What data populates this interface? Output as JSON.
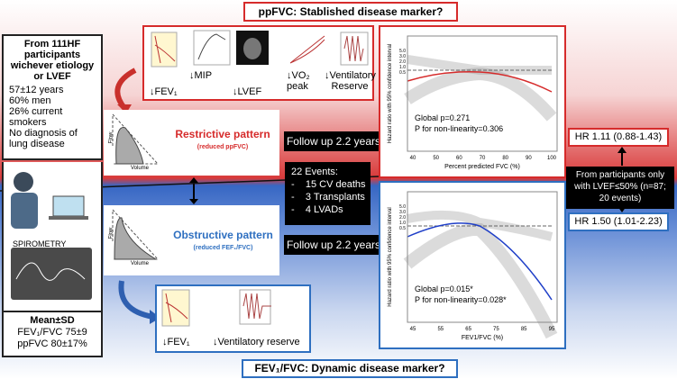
{
  "header": {
    "title": "ppFVC: Stablished disease marker?"
  },
  "footer": {
    "title": "FEV₁/FVC: Dynamic disease marker?"
  },
  "cohort": {
    "title": "From 111HF participants wichever etiology or LVEF",
    "items": [
      "57±12 years",
      "60% men",
      "26% current smokers",
      "No diagnosis of lung disease"
    ]
  },
  "spirometry_label": "SPIROMETRY",
  "summary": {
    "title": "Mean±SD",
    "items": [
      "FEV₁/FVC 75±9",
      "ppFVC 80±17%"
    ]
  },
  "top_findings": [
    "↓FEV₁",
    "↓MIP",
    "↓LVEF",
    "↓VO₂ peak",
    "↓Ventilatory Reserve"
  ],
  "bottom_findings": [
    "↓FEV₁",
    "↓Ventilatory reserve"
  ],
  "restrictive": {
    "title": "Restrictive pattern",
    "subtitle": "(reduced ppFVC)",
    "flow": "Flow",
    "volume": "Volume"
  },
  "obstructive": {
    "title": "Obstructive pattern",
    "subtitle": "(reduced FEF₁/FVC)",
    "flow": "Flow",
    "volume": "Volume"
  },
  "follow_up": [
    "Follow up 2.2 years",
    "Follow up 2.2 years"
  ],
  "events": {
    "title": "22 Events:",
    "items": [
      "-    15 CV deaths",
      "-    3 Transplants",
      "-    4 LVADs"
    ]
  },
  "top_plot": {
    "ylabel": "Hazard ratio with 95% confidence interval",
    "xlabel": "Percent predicted FVC (%)",
    "xticks": [
      "40",
      "50",
      "60",
      "70",
      "80",
      "90",
      "100"
    ],
    "yticks": [
      "5.0",
      "3.0",
      "2.0",
      "1.0",
      "0.5"
    ],
    "stats": [
      "Global p=0.271",
      "P for non-linearity=0.306"
    ]
  },
  "bottom_plot": {
    "ylabel": "Hazard ratio with 95% confidence interval",
    "xlabel": "FEV1/FVC (%)",
    "xticks": [
      "45",
      "55",
      "65",
      "75",
      "85",
      "95"
    ],
    "yticks": [
      "5.0",
      "3.0",
      "2.0",
      "1.0",
      "0.5"
    ],
    "stats": [
      "Global p=0.015*",
      "P for non-linearity=0.028*"
    ]
  },
  "hr_top": "HR 1.11 (0.88-1.43)",
  "hr_bottom": "HR 1.50 (1.01-2.23)",
  "subgroup": "From participants only with LVEF≤50% (n=87; 20 events)"
}
